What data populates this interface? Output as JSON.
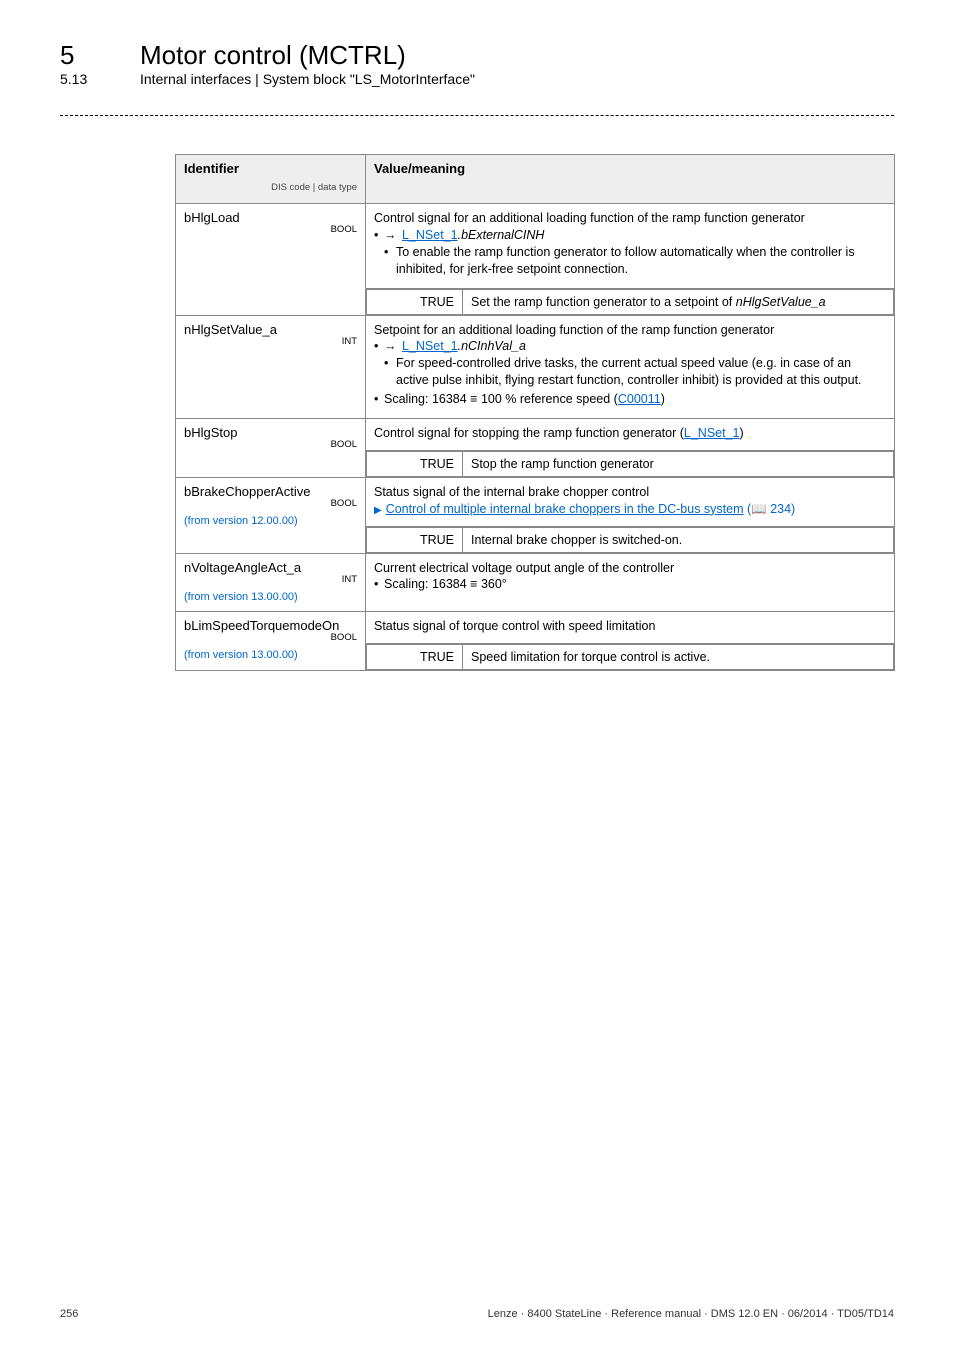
{
  "header": {
    "chapter_num": "5",
    "chapter_title": "Motor control (MCTRL)",
    "section_num": "5.13",
    "section_title": "Internal interfaces | System block \"LS_MotorInterface\""
  },
  "table": {
    "head": {
      "identifier": "Identifier",
      "id_sub": "DIS code | data type",
      "value": "Value/meaning"
    },
    "rows": [
      {
        "id": "bHlgLoad",
        "type": "BOOL",
        "desc_pre": "Control signal for an additional loading function of the ramp function generator",
        "bullets": [
          {
            "pre": "",
            "link": "L_NSet_1",
            "post_ital": ".bExternalCINH",
            "arrow": true
          },
          {
            "sub": "To enable the ramp function generator to follow automatically when the controller is inhibited, for jerk-free setpoint connection."
          }
        ],
        "sub": [
          {
            "k": "TRUE",
            "v_pre": "Set the ramp function generator to a setpoint of ",
            "v_ital": "nHlgSetValue_a"
          }
        ]
      },
      {
        "id": "nHlgSetValue_a",
        "type": "INT",
        "desc_pre": "Setpoint for an additional loading function of the ramp function generator",
        "bullets": [
          {
            "pre": "",
            "link": "L_NSet_1",
            "post_ital": ".nCInhVal_a",
            "arrow": true
          },
          {
            "sub": "For speed-controlled drive tasks, the current actual speed value (e.g. in case of an active pulse inhibit, flying restart function, controller inhibit) is provided at this output."
          },
          {
            "scaling_pre": "Scaling: 16384 ≡ 100 % reference speed (",
            "scaling_link": "C00011",
            "scaling_post": ")"
          }
        ]
      },
      {
        "id": "bHlgStop",
        "type": "BOOL",
        "desc_pre": "Control signal for stopping the ramp function generator (",
        "desc_link": "L_NSet_1",
        "desc_post": ")",
        "sub": [
          {
            "k": "TRUE",
            "v": "Stop the ramp function generator"
          }
        ]
      },
      {
        "id": "bBrakeChopperActive",
        "type": "BOOL",
        "note": "(from version 12.00.00)",
        "desc_pre": "Status signal of the internal brake chopper control",
        "tri_link": "Control of multiple internal brake choppers in the DC-bus system",
        "tri_post": " (📖 234)",
        "sub": [
          {
            "k": "TRUE",
            "v": "Internal brake chopper is switched-on."
          }
        ]
      },
      {
        "id": "nVoltageAngleAct_a",
        "type": "INT",
        "note": "(from version 13.00.00)",
        "desc_pre": "Current electrical voltage output angle of the controller",
        "bullets2": [
          "Scaling: 16384 ≡ 360°"
        ]
      },
      {
        "id": "bLimSpeedTorquemodeOn",
        "type": "BOOL",
        "note": "(from version 13.00.00)",
        "desc_pre": "Status signal of torque control with speed limitation",
        "sub": [
          {
            "k": "TRUE",
            "v": "Speed limitation for torque control is active."
          }
        ]
      }
    ]
  },
  "footer": {
    "page": "256",
    "ref": "Lenze · 8400 StateLine · Reference manual · DMS 12.0 EN · 06/2014 · TD05/TD14"
  }
}
